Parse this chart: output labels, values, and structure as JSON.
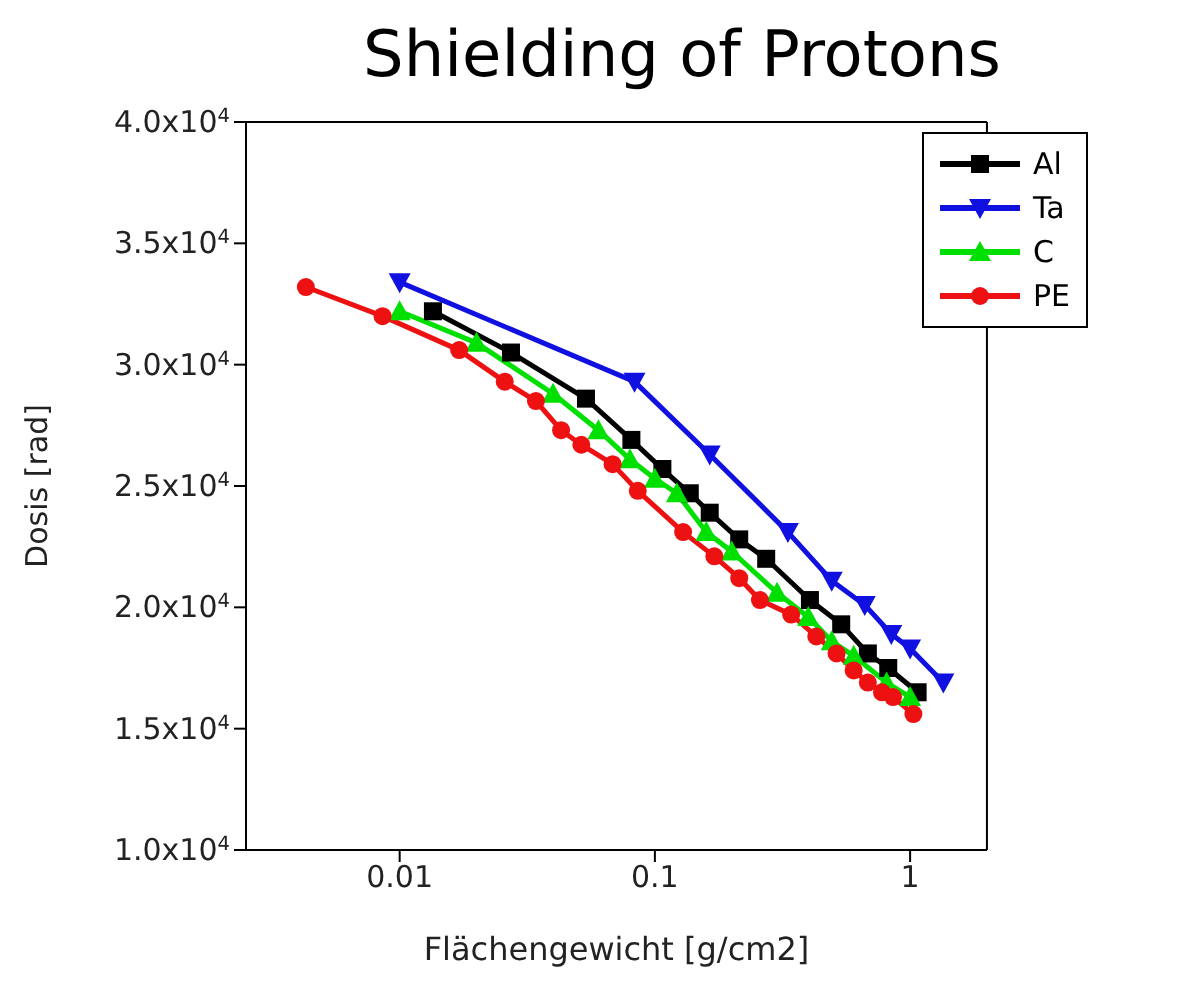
{
  "chart_data": {
    "type": "line",
    "title": "Shielding of Protons",
    "xlabel": "Flächengewicht [g/cm2]",
    "ylabel": "Dosis [rad]",
    "log": "x",
    "grid": false,
    "legend": "top right",
    "xlim": [
      0.0025,
      2
    ],
    "xticks": [
      0.01,
      0.1,
      1
    ],
    "ylim": [
      10000,
      40000
    ],
    "yticks": [
      {
        "value": 10000,
        "label": "1.0x10$^{4}$"
      },
      {
        "value": 15000,
        "label": "1.5x10$^{4}$"
      },
      {
        "value": 20000,
        "label": "2.0x10$^{4}$"
      },
      {
        "value": 25000,
        "label": "2.5x10$^{4}$"
      },
      {
        "value": 30000,
        "label": "3.0x10$^{4}$"
      },
      {
        "value": 35000,
        "label": "3.5x10$^{4}$"
      },
      {
        "value": 40000,
        "label": "4.0x10$^{4}$"
      }
    ],
    "series": [
      {
        "name": "Al",
        "color": "#000000",
        "marker": "square",
        "x": [
          0.0135,
          0.0273,
          0.0537,
          0.0809,
          0.107,
          0.137,
          0.164,
          0.214,
          0.273,
          0.405,
          0.537,
          0.683,
          0.821,
          1.07
        ],
        "values": [
          32200,
          30500,
          28600,
          26900,
          25700,
          24700,
          23900,
          22800,
          22000,
          20300,
          19300,
          18100,
          17500,
          16500
        ]
      },
      {
        "name": "Ta",
        "color": "#1010e0",
        "marker": "triangle-down",
        "x": [
          0.01,
          0.0832,
          0.164,
          0.332,
          0.493,
          0.664,
          0.844,
          1.0,
          1.35
        ],
        "values": [
          33400,
          29300,
          26300,
          23100,
          21100,
          20100,
          18900,
          18300,
          16900
        ]
      },
      {
        "name": "C",
        "color": "#00e000",
        "marker": "triangle",
        "x": [
          0.01,
          0.02,
          0.0399,
          0.0601,
          0.0798,
          0.1,
          0.122,
          0.159,
          0.2,
          0.301,
          0.399,
          0.493,
          0.601,
          0.809,
          1.0
        ],
        "values": [
          32200,
          30900,
          28800,
          27300,
          26100,
          25300,
          24700,
          23100,
          22300,
          20600,
          19600,
          18600,
          18000,
          16900,
          16300
        ]
      },
      {
        "name": "PE",
        "color": "#ee1111",
        "marker": "circle",
        "x": [
          0.00429,
          0.00857,
          0.0171,
          0.0258,
          0.0342,
          0.0429,
          0.0515,
          0.0683,
          0.0857,
          0.129,
          0.171,
          0.214,
          0.258,
          0.342,
          0.429,
          0.515,
          0.601,
          0.683,
          0.776,
          0.857,
          1.03
        ],
        "values": [
          33200,
          32000,
          30600,
          29300,
          28500,
          27300,
          26700,
          25900,
          24800,
          23100,
          22100,
          21200,
          20300,
          19700,
          18800,
          18100,
          17400,
          16900,
          16500,
          16300,
          15600
        ]
      }
    ]
  }
}
